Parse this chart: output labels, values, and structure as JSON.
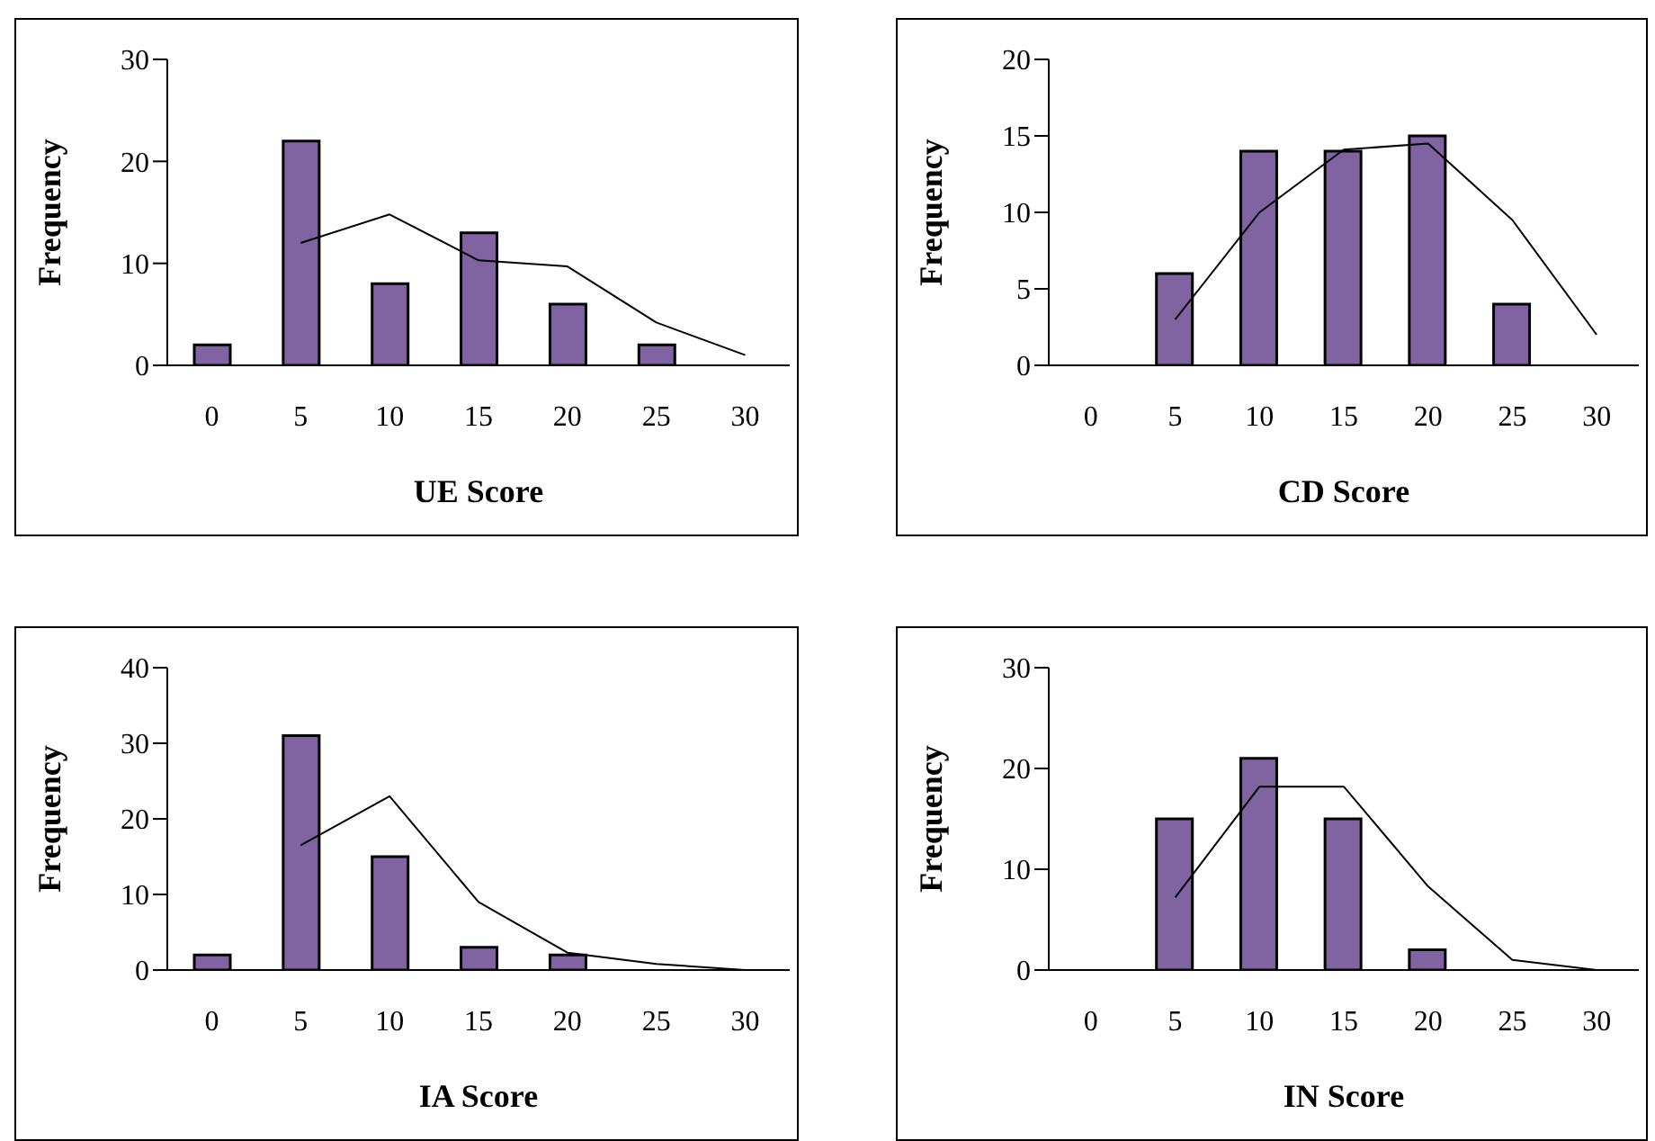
{
  "chart_data": [
    {
      "type": "bar",
      "xlabel": "UE Score",
      "ylabel": "Frequency",
      "categories": [
        "0",
        "5",
        "10",
        "15",
        "20",
        "25",
        "30"
      ],
      "ylim": [
        0,
        30
      ],
      "yticks": [
        0,
        10,
        20,
        30
      ],
      "series": [
        {
          "color": "#8064a2",
          "values": [
            2,
            22,
            8,
            13,
            6,
            2,
            null
          ]
        },
        {
          "type": "line",
          "color": "#000000",
          "values": [
            null,
            12,
            14.8,
            10.3,
            9.7,
            4.2,
            1
          ]
        }
      ]
    },
    {
      "type": "bar",
      "xlabel": "CD Score",
      "ylabel": "Frequency",
      "categories": [
        "0",
        "5",
        "10",
        "15",
        "20",
        "25",
        "30"
      ],
      "ylim": [
        0,
        20
      ],
      "yticks": [
        0,
        5,
        10,
        15,
        20
      ],
      "series": [
        {
          "color": "#8064a2",
          "values": [
            null,
            6,
            14,
            14,
            15,
            4,
            null
          ]
        },
        {
          "type": "line",
          "color": "#000000",
          "values": [
            null,
            3,
            10,
            14.1,
            14.5,
            9.5,
            2
          ]
        }
      ]
    },
    {
      "type": "bar",
      "xlabel": "IA Score",
      "ylabel": "Frequency",
      "categories": [
        "0",
        "5",
        "10",
        "15",
        "20",
        "25",
        "30"
      ],
      "ylim": [
        0,
        40
      ],
      "yticks": [
        0,
        10,
        20,
        30,
        40
      ],
      "series": [
        {
          "color": "#8064a2",
          "values": [
            2,
            31,
            15,
            3,
            2,
            null,
            null
          ]
        },
        {
          "type": "line",
          "color": "#000000",
          "values": [
            null,
            16.5,
            23,
            9,
            2.3,
            0.8,
            0
          ]
        }
      ]
    },
    {
      "type": "bar",
      "xlabel": "IN Score",
      "ylabel": "Frequency",
      "categories": [
        "0",
        "5",
        "10",
        "15",
        "20",
        "25",
        "30"
      ],
      "ylim": [
        0,
        30
      ],
      "yticks": [
        0,
        10,
        20,
        30
      ],
      "series": [
        {
          "color": "#8064a2",
          "values": [
            null,
            15,
            21,
            15,
            2,
            null,
            null
          ]
        },
        {
          "type": "line",
          "color": "#000000",
          "values": [
            null,
            7.2,
            18.2,
            18.2,
            8.3,
            1,
            0
          ]
        }
      ]
    }
  ]
}
